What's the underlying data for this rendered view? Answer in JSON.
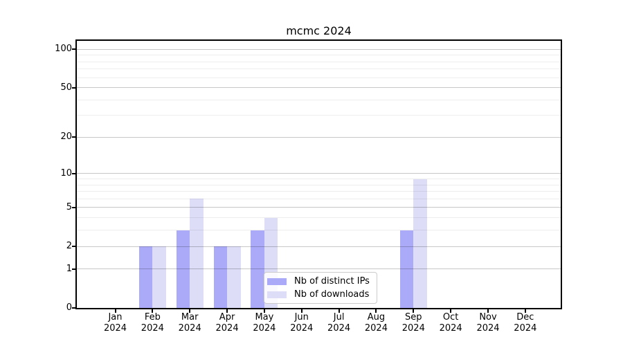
{
  "chart_data": {
    "type": "bar",
    "title": "mcmc 2024",
    "categories": [
      "Jan 2024",
      "Feb 2024",
      "Mar 2024",
      "Apr 2024",
      "May 2024",
      "Jun 2024",
      "Jul 2024",
      "Aug 2024",
      "Sep 2024",
      "Oct 2024",
      "Nov 2024",
      "Dec 2024"
    ],
    "series": [
      {
        "name": "Nb of distinct IPs",
        "color": "#aaaaf8",
        "values": [
          0,
          2,
          3,
          2,
          3,
          0,
          0,
          0,
          3,
          0,
          0,
          0
        ]
      },
      {
        "name": "Nb of downloads",
        "color": "#ddddf8",
        "values": [
          0,
          2,
          6,
          2,
          4,
          0,
          0,
          0,
          9,
          0,
          0,
          0
        ]
      }
    ],
    "y_axis": {
      "scale": "log1p",
      "ticks": [
        0,
        1,
        2,
        5,
        10,
        20,
        50,
        100
      ],
      "minor_gridlines": [
        3,
        4,
        6,
        7,
        8,
        9,
        30,
        40,
        60,
        70,
        80,
        90
      ],
      "top_value": 116
    },
    "x_axis": {
      "label_format": "month over year"
    },
    "legend": {
      "position": "inside-bottom-center",
      "entries": [
        "Nb of distinct IPs",
        "Nb of downloads"
      ]
    },
    "grid": "horizontal-major-and-minor",
    "colors": {
      "bar_distinct_ips": "#aaaaf8",
      "bar_downloads": "#ddddf8",
      "axis": "#000000",
      "grid_major": "#c8c8c8",
      "grid_minor": "#ececec",
      "background": "#ffffff"
    }
  }
}
